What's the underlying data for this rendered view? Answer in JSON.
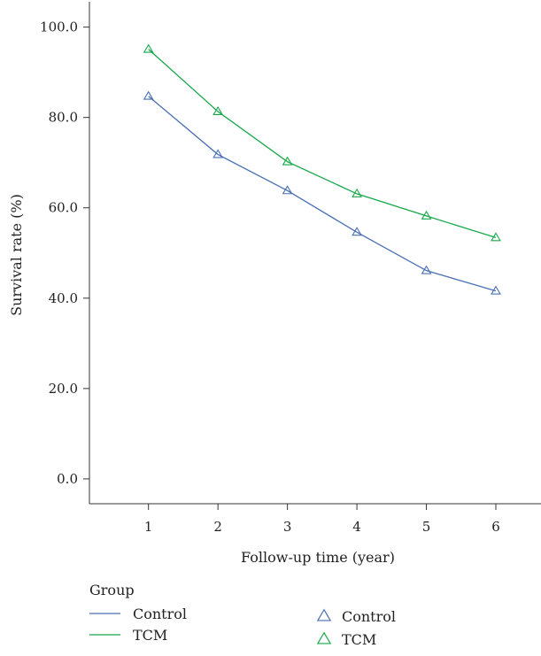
{
  "chart_data": {
    "type": "line",
    "title": "",
    "xlabel": "Follow-up time (year)",
    "ylabel": "Survival rate (%)",
    "x": [
      1,
      2,
      3,
      4,
      5,
      6
    ],
    "xticks": [
      "1",
      "2",
      "3",
      "4",
      "5",
      "6"
    ],
    "xlim": [
      0.15,
      6.65
    ],
    "ylim": [
      -5.5,
      106
    ],
    "yticks": [
      0.0,
      20.0,
      40.0,
      60.0,
      80.0,
      100.0
    ],
    "ytick_labels": [
      "0.0",
      "20.0",
      "40.0",
      "60.0",
      "80.0",
      "100.0"
    ],
    "grid": false,
    "series": [
      {
        "name": "Control",
        "color": "#4a6fb5",
        "marker": "triangle-open",
        "values": [
          84.7,
          71.8,
          63.8,
          54.6,
          46.1,
          41.6
        ]
      },
      {
        "name": "TCM",
        "color": "#16a849",
        "marker": "triangle-open",
        "values": [
          95.1,
          81.3,
          70.2,
          63.1,
          58.2,
          53.4
        ]
      }
    ],
    "legend": {
      "title": "Group",
      "placement": "bottom",
      "line_entries": [
        {
          "label": "Control",
          "color": "#4a6fb5"
        },
        {
          "label": "TCM",
          "color": "#16a849"
        }
      ],
      "marker_entries": [
        {
          "label": "Control",
          "color": "#4a6fb5"
        },
        {
          "label": "TCM",
          "color": "#16a849"
        }
      ]
    }
  }
}
